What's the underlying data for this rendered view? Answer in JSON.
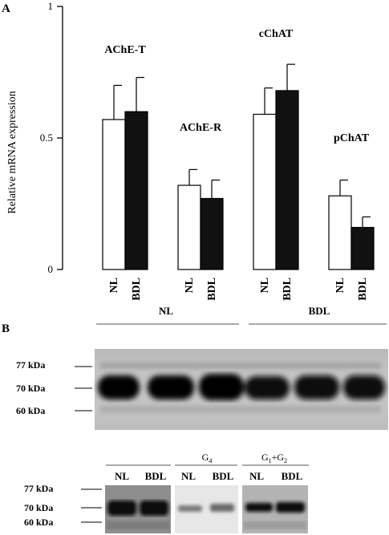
{
  "panels": {
    "a": {
      "label": "A"
    },
    "b": {
      "label": "B"
    }
  },
  "chart_data": {
    "type": "bar",
    "ylabel": "Relative mRNA expression",
    "ylim": [
      0,
      1
    ],
    "yticks": [
      {
        "value": 0,
        "label": "0"
      },
      {
        "value": 0.5,
        "label": "0.5"
      },
      {
        "value": 1,
        "label": "1"
      }
    ],
    "groups": [
      {
        "label": "AChE-T",
        "bars": [
          {
            "label": "NL",
            "value": 0.57,
            "error": 0.13,
            "fill": "#ffffff"
          },
          {
            "label": "BDL",
            "value": 0.6,
            "error": 0.13,
            "fill": "#111111"
          }
        ]
      },
      {
        "label": "AChE-R",
        "bars": [
          {
            "label": "NL",
            "value": 0.32,
            "error": 0.06,
            "fill": "#ffffff"
          },
          {
            "label": "BDL",
            "value": 0.27,
            "error": 0.07,
            "fill": "#111111"
          }
        ]
      },
      {
        "label": "cChAT",
        "bars": [
          {
            "label": "NL",
            "value": 0.59,
            "error": 0.1,
            "fill": "#ffffff"
          },
          {
            "label": "BDL",
            "value": 0.68,
            "error": 0.1,
            "fill": "#111111"
          }
        ]
      },
      {
        "label": "pChAT",
        "bars": [
          {
            "label": "NL",
            "value": 0.28,
            "error": 0.06,
            "fill": "#ffffff"
          },
          {
            "label": "BDL",
            "value": 0.16,
            "error": 0.04,
            "fill": "#111111"
          }
        ]
      }
    ]
  },
  "blot_top": {
    "groups": [
      "NL",
      "BDL"
    ],
    "markers": [
      "77 kDa",
      "70 kDa",
      "60 kDa"
    ]
  },
  "blot_bottom": {
    "markers": [
      "77 kDa",
      "70 kDa",
      "60 kDa"
    ],
    "headers": [
      {
        "title": "",
        "sub": "",
        "lanes": [
          "NL",
          "BDL"
        ]
      },
      {
        "title": "G",
        "sub": "4",
        "lanes": [
          "NL",
          "BDL"
        ]
      },
      {
        "title": "G",
        "sub": "1",
        "plus": "+G",
        "sub2": "2",
        "lanes": [
          "NL",
          "BDL"
        ]
      }
    ]
  }
}
